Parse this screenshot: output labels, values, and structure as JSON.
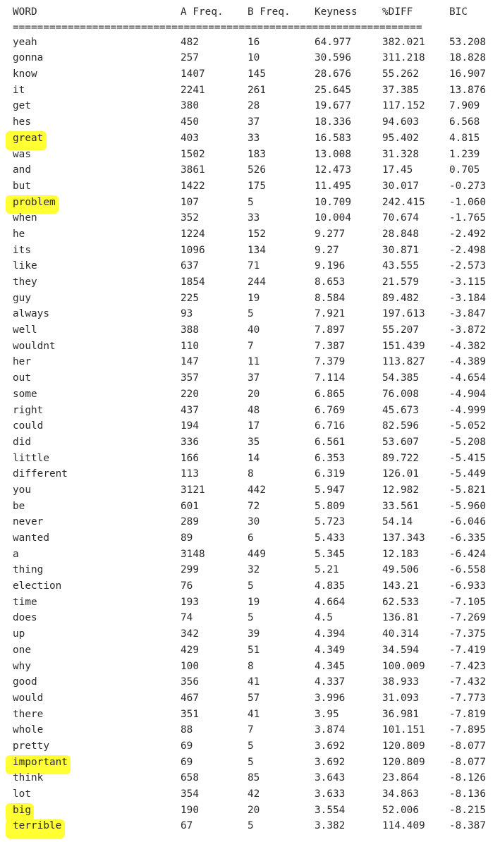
{
  "colors": {
    "highlight": "#ffff33",
    "text": "#2b2b2b",
    "background": "#ffffff"
  },
  "headers": [
    "WORD",
    "A Freq.",
    "B Freq.",
    "Keyness",
    "%DIFF",
    "BIC"
  ],
  "separator": "===================================================================",
  "rows": [
    {
      "word": "yeah",
      "a": "482",
      "b": "16",
      "keyness": "64.977",
      "diff": "382.021",
      "bic": "53.208",
      "highlighted": false
    },
    {
      "word": "gonna",
      "a": "257",
      "b": "10",
      "keyness": "30.596",
      "diff": "311.218",
      "bic": "18.828",
      "highlighted": false
    },
    {
      "word": "know",
      "a": "1407",
      "b": "145",
      "keyness": "28.676",
      "diff": "55.262",
      "bic": "16.907",
      "highlighted": false
    },
    {
      "word": "it",
      "a": "2241",
      "b": "261",
      "keyness": "25.645",
      "diff": "37.385",
      "bic": "13.876",
      "highlighted": false
    },
    {
      "word": "get",
      "a": "380",
      "b": "28",
      "keyness": "19.677",
      "diff": "117.152",
      "bic": "7.909",
      "highlighted": false
    },
    {
      "word": "hes",
      "a": "450",
      "b": "37",
      "keyness": "18.336",
      "diff": "94.603",
      "bic": "6.568",
      "highlighted": false
    },
    {
      "word": "great",
      "a": "403",
      "b": "33",
      "keyness": "16.583",
      "diff": "95.402",
      "bic": "4.815",
      "highlighted": true
    },
    {
      "word": "was",
      "a": "1502",
      "b": "183",
      "keyness": "13.008",
      "diff": "31.328",
      "bic": "1.239",
      "highlighted": false
    },
    {
      "word": "and",
      "a": "3861",
      "b": "526",
      "keyness": "12.473",
      "diff": "17.45",
      "bic": "0.705",
      "highlighted": false
    },
    {
      "word": "but",
      "a": "1422",
      "b": "175",
      "keyness": "11.495",
      "diff": "30.017",
      "bic": "-0.273",
      "highlighted": false
    },
    {
      "word": "problem",
      "a": "107",
      "b": "5",
      "keyness": "10.709",
      "diff": "242.415",
      "bic": "-1.060",
      "highlighted": true
    },
    {
      "word": "when",
      "a": "352",
      "b": "33",
      "keyness": "10.004",
      "diff": "70.674",
      "bic": "-1.765",
      "highlighted": false
    },
    {
      "word": "he",
      "a": "1224",
      "b": "152",
      "keyness": "9.277",
      "diff": "28.848",
      "bic": "-2.492",
      "highlighted": false
    },
    {
      "word": "its",
      "a": "1096",
      "b": "134",
      "keyness": "9.27",
      "diff": "30.871",
      "bic": "-2.498",
      "highlighted": false
    },
    {
      "word": "like",
      "a": "637",
      "b": "71",
      "keyness": "9.196",
      "diff": "43.555",
      "bic": "-2.573",
      "highlighted": false
    },
    {
      "word": "they",
      "a": "1854",
      "b": "244",
      "keyness": "8.653",
      "diff": "21.579",
      "bic": "-3.115",
      "highlighted": false
    },
    {
      "word": "guy",
      "a": "225",
      "b": "19",
      "keyness": "8.584",
      "diff": "89.482",
      "bic": "-3.184",
      "highlighted": false
    },
    {
      "word": "always",
      "a": "93",
      "b": "5",
      "keyness": "7.921",
      "diff": "197.613",
      "bic": "-3.847",
      "highlighted": false
    },
    {
      "word": "well",
      "a": "388",
      "b": "40",
      "keyness": "7.897",
      "diff": "55.207",
      "bic": "-3.872",
      "highlighted": false
    },
    {
      "word": "wouldnt",
      "a": "110",
      "b": "7",
      "keyness": "7.387",
      "diff": "151.439",
      "bic": "-4.382",
      "highlighted": false
    },
    {
      "word": "her",
      "a": "147",
      "b": "11",
      "keyness": "7.379",
      "diff": "113.827",
      "bic": "-4.389",
      "highlighted": false
    },
    {
      "word": "out",
      "a": "357",
      "b": "37",
      "keyness": "7.114",
      "diff": "54.385",
      "bic": "-4.654",
      "highlighted": false
    },
    {
      "word": "some",
      "a": "220",
      "b": "20",
      "keyness": "6.865",
      "diff": "76.008",
      "bic": "-4.904",
      "highlighted": false
    },
    {
      "word": "right",
      "a": "437",
      "b": "48",
      "keyness": "6.769",
      "diff": "45.673",
      "bic": "-4.999",
      "highlighted": false
    },
    {
      "word": "could",
      "a": "194",
      "b": "17",
      "keyness": "6.716",
      "diff": "82.596",
      "bic": "-5.052",
      "highlighted": false
    },
    {
      "word": "did",
      "a": "336",
      "b": "35",
      "keyness": "6.561",
      "diff": "53.607",
      "bic": "-5.208",
      "highlighted": false
    },
    {
      "word": "little",
      "a": "166",
      "b": "14",
      "keyness": "6.353",
      "diff": "89.722",
      "bic": "-5.415",
      "highlighted": false
    },
    {
      "word": "different",
      "a": "113",
      "b": "8",
      "keyness": "6.319",
      "diff": "126.01",
      "bic": "-5.449",
      "highlighted": false
    },
    {
      "word": "you",
      "a": "3121",
      "b": "442",
      "keyness": "5.947",
      "diff": "12.982",
      "bic": "-5.821",
      "highlighted": false
    },
    {
      "word": "be",
      "a": "601",
      "b": "72",
      "keyness": "5.809",
      "diff": "33.561",
      "bic": "-5.960",
      "highlighted": false
    },
    {
      "word": "never",
      "a": "289",
      "b": "30",
      "keyness": "5.723",
      "diff": "54.14",
      "bic": "-6.046",
      "highlighted": false
    },
    {
      "word": "wanted",
      "a": "89",
      "b": "6",
      "keyness": "5.433",
      "diff": "137.343",
      "bic": "-6.335",
      "highlighted": false
    },
    {
      "word": "a",
      "a": "3148",
      "b": "449",
      "keyness": "5.345",
      "diff": "12.183",
      "bic": "-6.424",
      "highlighted": false
    },
    {
      "word": "thing",
      "a": "299",
      "b": "32",
      "keyness": "5.21",
      "diff": "49.506",
      "bic": "-6.558",
      "highlighted": false
    },
    {
      "word": "election",
      "a": "76",
      "b": "5",
      "keyness": "4.835",
      "diff": "143.21",
      "bic": "-6.933",
      "highlighted": false
    },
    {
      "word": "time",
      "a": "193",
      "b": "19",
      "keyness": "4.664",
      "diff": "62.533",
      "bic": "-7.105",
      "highlighted": false
    },
    {
      "word": "does",
      "a": "74",
      "b": "5",
      "keyness": "4.5",
      "diff": "136.81",
      "bic": "-7.269",
      "highlighted": false
    },
    {
      "word": "up",
      "a": "342",
      "b": "39",
      "keyness": "4.394",
      "diff": "40.314",
      "bic": "-7.375",
      "highlighted": false
    },
    {
      "word": "one",
      "a": "429",
      "b": "51",
      "keyness": "4.349",
      "diff": "34.594",
      "bic": "-7.419",
      "highlighted": false
    },
    {
      "word": "why",
      "a": "100",
      "b": "8",
      "keyness": "4.345",
      "diff": "100.009",
      "bic": "-7.423",
      "highlighted": false
    },
    {
      "word": "good",
      "a": "356",
      "b": "41",
      "keyness": "4.337",
      "diff": "38.933",
      "bic": "-7.432",
      "highlighted": false
    },
    {
      "word": "would",
      "a": "467",
      "b": "57",
      "keyness": "3.996",
      "diff": "31.093",
      "bic": "-7.773",
      "highlighted": false
    },
    {
      "word": "there",
      "a": "351",
      "b": "41",
      "keyness": "3.95",
      "diff": "36.981",
      "bic": "-7.819",
      "highlighted": false
    },
    {
      "word": "whole",
      "a": "88",
      "b": "7",
      "keyness": "3.874",
      "diff": "101.151",
      "bic": "-7.895",
      "highlighted": false
    },
    {
      "word": "pretty",
      "a": "69",
      "b": "5",
      "keyness": "3.692",
      "diff": "120.809",
      "bic": "-8.077",
      "highlighted": false
    },
    {
      "word": "important",
      "a": "69",
      "b": "5",
      "keyness": "3.692",
      "diff": "120.809",
      "bic": "-8.077",
      "highlighted": true
    },
    {
      "word": "think",
      "a": "658",
      "b": "85",
      "keyness": "3.643",
      "diff": "23.864",
      "bic": "-8.126",
      "highlighted": false
    },
    {
      "word": "lot",
      "a": "354",
      "b": "42",
      "keyness": "3.633",
      "diff": "34.863",
      "bic": "-8.136",
      "highlighted": false
    },
    {
      "word": "big",
      "a": "190",
      "b": "20",
      "keyness": "3.554",
      "diff": "52.006",
      "bic": "-8.215",
      "highlighted": true
    },
    {
      "word": "terrible",
      "a": "67",
      "b": "5",
      "keyness": "3.382",
      "diff": "114.409",
      "bic": "-8.387",
      "highlighted": true
    }
  ]
}
